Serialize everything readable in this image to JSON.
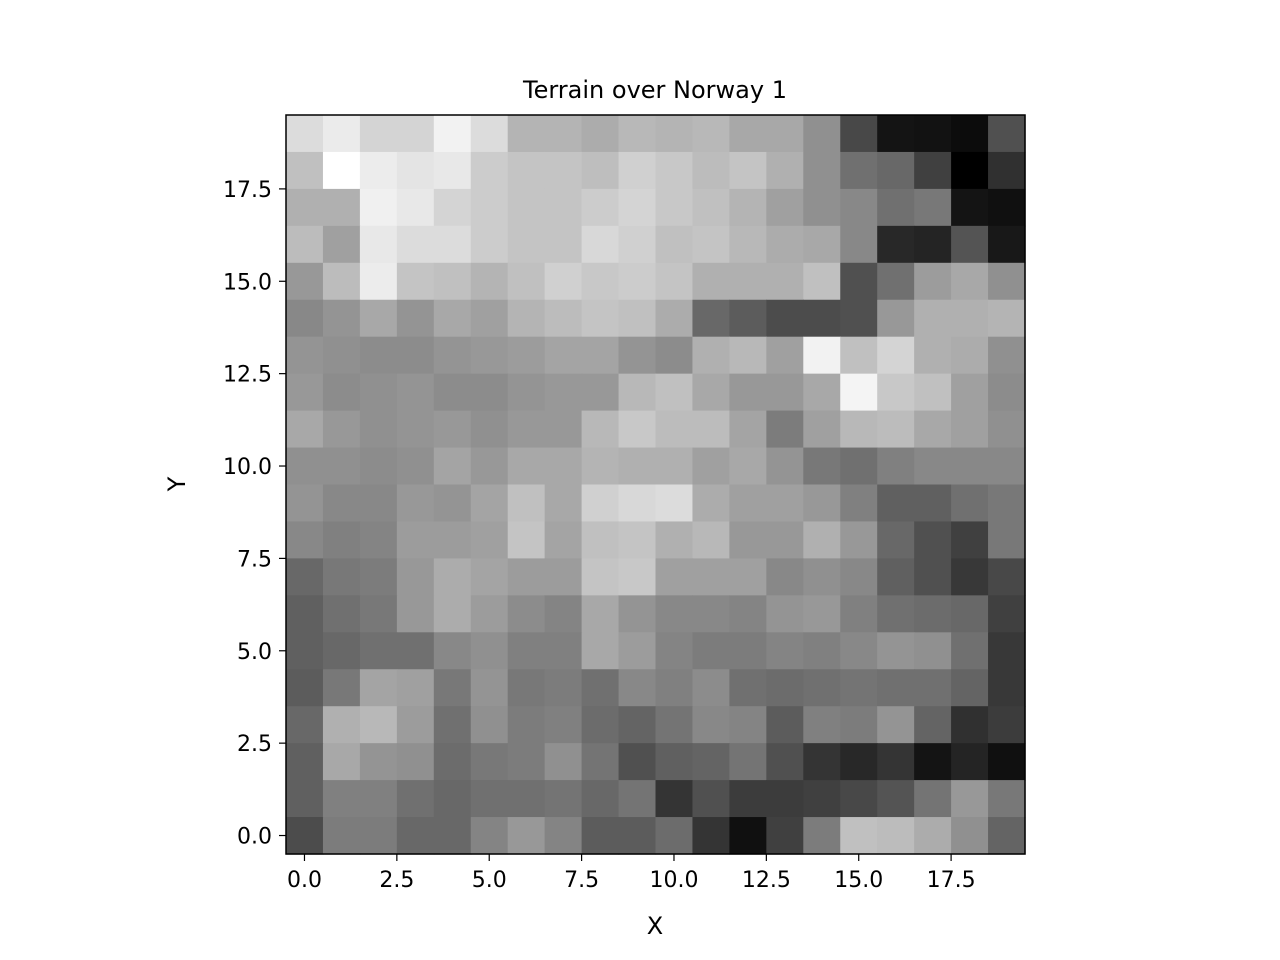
{
  "chart_data": {
    "type": "heatmap",
    "title": "Terrain over Norway 1",
    "xlabel": "X",
    "ylabel": "Y",
    "colormap": "gray",
    "xlim": [
      -0.5,
      19.5
    ],
    "ylim": [
      19.5,
      -0.5
    ],
    "xticks": [
      "0.0",
      "2.5",
      "5.0",
      "7.5",
      "10.0",
      "12.5",
      "15.0",
      "17.5"
    ],
    "yticks": [
      "0.0",
      "2.5",
      "5.0",
      "7.5",
      "10.0",
      "12.5",
      "15.0",
      "17.5"
    ],
    "values": [
      [
        220,
        235,
        212,
        212,
        242,
        220,
        180,
        180,
        172,
        184,
        180,
        184,
        168,
        168,
        144,
        72,
        20,
        18,
        12,
        80
      ],
      [
        192,
        255,
        236,
        228,
        232,
        204,
        196,
        196,
        190,
        208,
        200,
        188,
        196,
        176,
        144,
        112,
        104,
        64,
        0,
        48
      ],
      [
        176,
        176,
        240,
        232,
        212,
        204,
        196,
        196,
        204,
        212,
        200,
        192,
        180,
        160,
        144,
        136,
        112,
        120,
        20,
        16
      ],
      [
        188,
        160,
        232,
        220,
        220,
        204,
        196,
        196,
        216,
        208,
        192,
        196,
        184,
        172,
        168,
        136,
        40,
        36,
        84,
        24
      ],
      [
        152,
        188,
        236,
        196,
        192,
        180,
        192,
        208,
        200,
        204,
        196,
        176,
        176,
        176,
        192,
        80,
        112,
        156,
        168,
        144
      ],
      [
        136,
        148,
        168,
        148,
        168,
        160,
        180,
        188,
        196,
        192,
        172,
        104,
        92,
        76,
        76,
        80,
        152,
        176,
        176,
        180
      ],
      [
        148,
        144,
        140,
        140,
        148,
        152,
        156,
        164,
        164,
        148,
        140,
        176,
        184,
        160,
        242,
        192,
        212,
        176,
        172,
        144
      ],
      [
        152,
        140,
        144,
        148,
        140,
        140,
        148,
        152,
        152,
        184,
        192,
        168,
        152,
        152,
        168,
        244,
        200,
        192,
        160,
        140
      ],
      [
        168,
        152,
        144,
        148,
        152,
        144,
        152,
        152,
        184,
        200,
        188,
        188,
        164,
        124,
        160,
        184,
        188,
        168,
        160,
        144
      ],
      [
        144,
        144,
        140,
        144,
        164,
        152,
        168,
        168,
        180,
        176,
        176,
        160,
        168,
        148,
        120,
        112,
        128,
        136,
        136,
        136
      ],
      [
        148,
        136,
        136,
        152,
        148,
        164,
        192,
        168,
        208,
        216,
        220,
        172,
        160,
        160,
        152,
        128,
        96,
        96,
        112,
        120
      ],
      [
        136,
        128,
        132,
        156,
        156,
        160,
        196,
        164,
        192,
        196,
        176,
        184,
        152,
        152,
        176,
        152,
        104,
        80,
        64,
        120
      ],
      [
        104,
        120,
        124,
        152,
        172,
        164,
        156,
        156,
        196,
        200,
        160,
        160,
        160,
        136,
        144,
        136,
        96,
        80,
        56,
        72
      ],
      [
        96,
        112,
        120,
        152,
        172,
        156,
        140,
        132,
        168,
        148,
        136,
        136,
        132,
        148,
        152,
        128,
        112,
        108,
        104,
        64
      ],
      [
        96,
        104,
        112,
        112,
        136,
        144,
        128,
        128,
        168,
        156,
        132,
        124,
        124,
        132,
        128,
        136,
        148,
        144,
        112,
        56
      ],
      [
        92,
        120,
        164,
        160,
        120,
        148,
        120,
        124,
        112,
        136,
        128,
        140,
        112,
        108,
        112,
        116,
        112,
        112,
        100,
        56
      ],
      [
        104,
        176,
        184,
        156,
        112,
        144,
        124,
        128,
        108,
        100,
        116,
        136,
        132,
        92,
        128,
        124,
        148,
        100,
        48,
        60
      ],
      [
        96,
        168,
        148,
        144,
        108,
        120,
        124,
        144,
        116,
        80,
        96,
        100,
        116,
        80,
        52,
        40,
        52,
        20,
        36,
        16
      ],
      [
        96,
        128,
        128,
        112,
        104,
        112,
        112,
        116,
        104,
        116,
        52,
        80,
        60,
        60,
        64,
        72,
        84,
        116,
        152,
        120
      ],
      [
        76,
        124,
        124,
        104,
        104,
        132,
        152,
        132,
        92,
        92,
        108,
        52,
        16,
        64,
        124,
        192,
        188,
        172,
        144,
        100
      ]
    ]
  }
}
